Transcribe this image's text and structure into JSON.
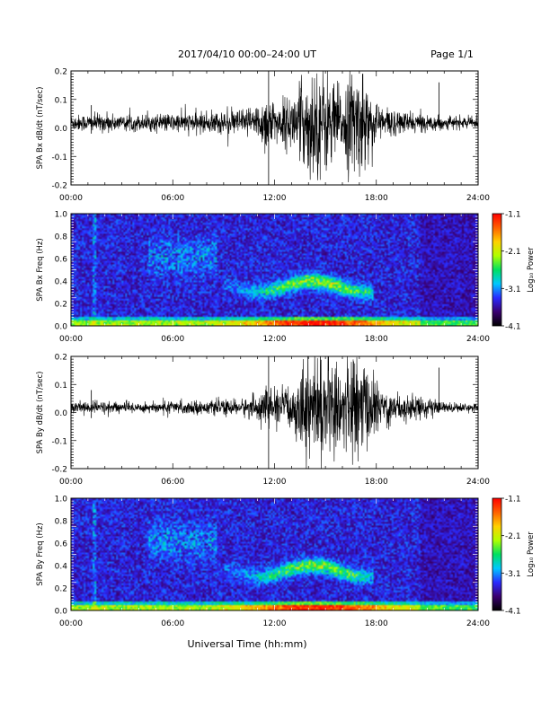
{
  "header": {
    "title": "2017/04/10  00:00–24:00 UT",
    "page": "Page 1/1"
  },
  "footer": {
    "xlabel": "Universal Time (hh:mm)"
  },
  "colorbar": {
    "label": "Log₁₀ Power",
    "ticks": [
      "-1.1",
      "-2.1",
      "-3.1",
      "-4.1"
    ],
    "colors": [
      "#000000",
      "#3a0070",
      "#2a2aff",
      "#00c8ff",
      "#00e060",
      "#b0ff00",
      "#ffd000",
      "#ff6000",
      "#ff0000"
    ]
  },
  "chart_data": [
    {
      "type": "line",
      "ylabel": "SPA Bx dB/dt (nT/sec)",
      "ylim": [
        -0.2,
        0.2
      ],
      "yticks": [
        "0.2",
        "0.1",
        "0.0",
        "-0.1",
        "-0.2"
      ],
      "xticks": [
        "00:00",
        "06:00",
        "12:00",
        "18:00",
        "24:00"
      ],
      "x_hours": [
        0,
        2,
        4,
        6,
        8,
        10,
        11,
        11.5,
        12,
        13,
        14,
        15,
        16,
        16.5,
        17,
        18,
        19,
        20,
        21,
        22,
        24
      ],
      "envelope": [
        0.03,
        0.035,
        0.03,
        0.035,
        0.04,
        0.05,
        0.07,
        0.12,
        0.08,
        0.1,
        0.2,
        0.2,
        0.12,
        0.2,
        0.2,
        0.08,
        0.05,
        0.04,
        0.03,
        0.025,
        0.02
      ]
    },
    {
      "type": "heatmap",
      "ylabel": "SPA Bx Freq (Hz)",
      "ylim": [
        0,
        1
      ],
      "yticks": [
        "1.0",
        "0.8",
        "0.6",
        "0.4",
        "0.2",
        "0.0"
      ],
      "xticks": [
        "00:00",
        "06:00",
        "12:00",
        "18:00",
        "24:00"
      ]
    },
    {
      "type": "line",
      "ylabel": "SPA By dB/dt (nT/sec)",
      "ylim": [
        -0.2,
        0.2
      ],
      "yticks": [
        "0.2",
        "0.1",
        "0.0",
        "-0.1",
        "-0.2"
      ],
      "xticks": [
        "00:00",
        "06:00",
        "12:00",
        "18:00",
        "24:00"
      ],
      "x_hours": [
        0,
        2,
        4,
        6,
        8,
        10,
        11,
        11.5,
        12,
        13,
        14,
        15,
        16,
        16.5,
        17,
        18,
        19,
        20,
        21,
        22,
        24
      ],
      "envelope": [
        0.02,
        0.025,
        0.02,
        0.025,
        0.025,
        0.03,
        0.05,
        0.08,
        0.06,
        0.09,
        0.2,
        0.2,
        0.14,
        0.2,
        0.2,
        0.1,
        0.06,
        0.05,
        0.04,
        0.02,
        0.015
      ]
    },
    {
      "type": "heatmap",
      "ylabel": "SPA By Freq (Hz)",
      "ylim": [
        0,
        1
      ],
      "yticks": [
        "1.0",
        "0.8",
        "0.6",
        "0.4",
        "0.2",
        "0.0"
      ],
      "xticks": [
        "00:00",
        "06:00",
        "12:00",
        "18:00",
        "24:00"
      ]
    }
  ]
}
